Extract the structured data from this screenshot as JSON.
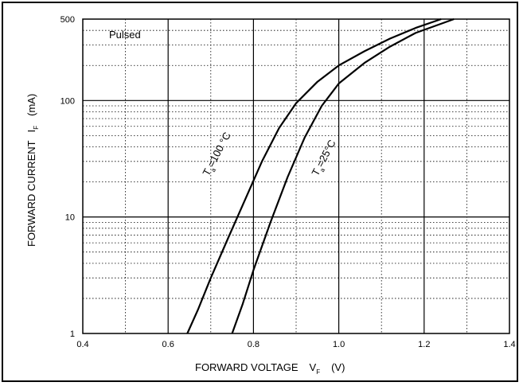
{
  "chart_data": {
    "type": "line",
    "annotation": "Pulsed",
    "xlabel": "FORWARD VOLTAGE",
    "xlabel_symbol": "V",
    "xlabel_subscript": "F",
    "xlabel_unit": "(V)",
    "ylabel": "FORWARD CURRENT",
    "ylabel_symbol": "I",
    "ylabel_subscript": "F",
    "ylabel_unit": "(mA)",
    "xlim": [
      0.4,
      1.4
    ],
    "ylim": [
      1,
      500
    ],
    "yscale": "log",
    "grid": true,
    "x_ticks": [
      "0.4",
      "0.6",
      "0.8",
      "1.0",
      "1.2",
      "1.4"
    ],
    "y_ticks": [
      "1",
      "10",
      "100",
      "500"
    ],
    "series": [
      {
        "label_prefix": "T",
        "label_subscript": "a",
        "label_suffix": "=100 °C",
        "points": [
          [
            0.645,
            1
          ],
          [
            0.67,
            1.6
          ],
          [
            0.7,
            3
          ],
          [
            0.74,
            6.5
          ],
          [
            0.78,
            14
          ],
          [
            0.82,
            30
          ],
          [
            0.86,
            58
          ],
          [
            0.9,
            95
          ],
          [
            0.95,
            145
          ],
          [
            1.0,
            200
          ],
          [
            1.06,
            265
          ],
          [
            1.12,
            340
          ],
          [
            1.18,
            420
          ],
          [
            1.24,
            500
          ]
        ]
      },
      {
        "label_prefix": "T",
        "label_subscript": "a",
        "label_suffix": "=25°C",
        "points": [
          [
            0.75,
            1
          ],
          [
            0.775,
            1.8
          ],
          [
            0.8,
            3.5
          ],
          [
            0.84,
            9
          ],
          [
            0.88,
            22
          ],
          [
            0.92,
            48
          ],
          [
            0.96,
            90
          ],
          [
            1.0,
            140
          ],
          [
            1.06,
            210
          ],
          [
            1.12,
            290
          ],
          [
            1.18,
            380
          ],
          [
            1.27,
            500
          ]
        ]
      }
    ]
  }
}
